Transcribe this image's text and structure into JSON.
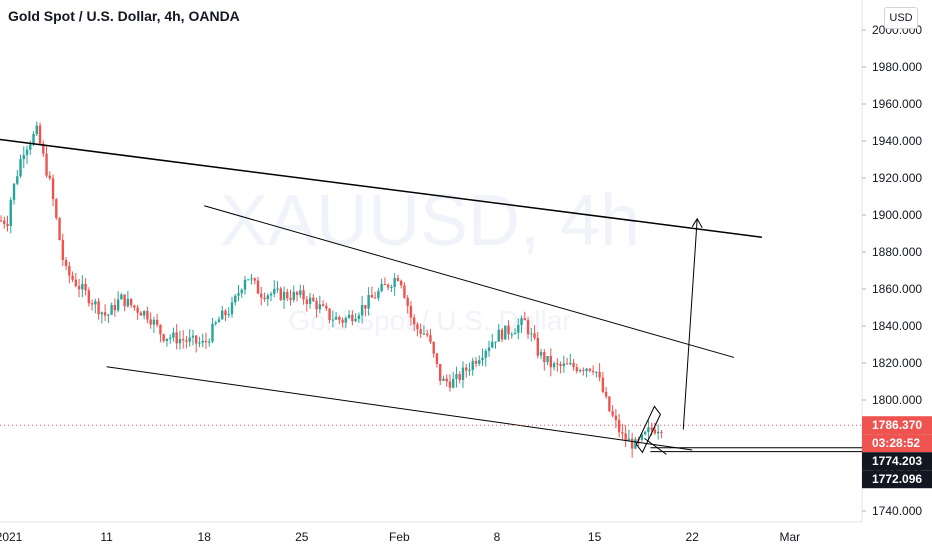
{
  "header": {
    "title": "Gold Spot / U.S. Dollar, 4h, OANDA",
    "currency": "USD"
  },
  "watermark": {
    "symbol": "XAUUSD, 4h",
    "subtitle": "Gold Spot / U.S. Dollar"
  },
  "colors": {
    "up": "#26a69a",
    "down": "#ef5350",
    "axis_text": "#131722",
    "trendline": "#000000",
    "last_price": "#ef5350",
    "dark_label": "#131722"
  },
  "chart_data": {
    "type": "candlestick",
    "title": "Gold Spot / U.S. Dollar, 4h, OANDA",
    "y_axis": {
      "side": "right",
      "ticks": [
        1740,
        1760,
        1780,
        1800,
        1820,
        1840,
        1860,
        1880,
        1900,
        1920,
        1940,
        1960,
        1980,
        2000
      ],
      "tick_labels": [
        "1740.000",
        "1760.000",
        "1780.000",
        "1800.000",
        "1820.000",
        "1840.000",
        "1860.000",
        "1880.000",
        "1900.000",
        "1920.000",
        "1940.000",
        "1960.000",
        "1980.000",
        "2000.000"
      ],
      "ylim": [
        1735,
        2005
      ]
    },
    "x_axis": {
      "tick_labels": [
        "2021",
        "11",
        "18",
        "25",
        "Feb",
        "8",
        "15",
        "22",
        "Mar"
      ],
      "tick_dates": [
        "2021-01-04",
        "2021-01-11",
        "2021-01-18",
        "2021-01-25",
        "2021-02-01",
        "2021-02-08",
        "2021-02-15",
        "2021-02-22",
        "2021-03-01"
      ]
    },
    "key_closes": [
      [
        "2021-01-04",
        1905
      ],
      [
        "2021-01-05",
        1935
      ],
      [
        "2021-01-06",
        1945
      ],
      [
        "2021-01-07",
        1915
      ],
      [
        "2021-01-08",
        1870
      ],
      [
        "2021-01-11",
        1845
      ],
      [
        "2021-01-12",
        1855
      ],
      [
        "2021-01-13",
        1850
      ],
      [
        "2021-01-14",
        1846
      ],
      [
        "2021-01-15",
        1835
      ],
      [
        "2021-01-18",
        1830
      ],
      [
        "2021-01-19",
        1843
      ],
      [
        "2021-01-20",
        1850
      ],
      [
        "2021-01-21",
        1868
      ],
      [
        "2021-01-22",
        1858
      ],
      [
        "2021-01-25",
        1856
      ],
      [
        "2021-01-26",
        1852
      ],
      [
        "2021-01-27",
        1845
      ],
      [
        "2021-01-28",
        1843
      ],
      [
        "2021-01-29",
        1848
      ],
      [
        "2021-02-01",
        1868
      ],
      [
        "2021-02-02",
        1840
      ],
      [
        "2021-02-03",
        1835
      ],
      [
        "2021-02-04",
        1810
      ],
      [
        "2021-02-05",
        1810
      ],
      [
        "2021-02-08",
        1835
      ],
      [
        "2021-02-09",
        1838
      ],
      [
        "2021-02-10",
        1842
      ],
      [
        "2021-02-11",
        1825
      ],
      [
        "2021-02-12",
        1818
      ],
      [
        "2021-02-15",
        1818
      ],
      [
        "2021-02-16",
        1795
      ],
      [
        "2021-02-17",
        1780
      ],
      [
        "2021-02-18",
        1775
      ],
      [
        "2021-02-19",
        1784
      ],
      [
        "2021-02-20",
        1786.37
      ]
    ],
    "trendlines": [
      {
        "name": "upper channel",
        "from": [
          "2020-12-30",
          1945
        ],
        "to": [
          "2021-02-27",
          1888
        ]
      },
      {
        "name": "middle line",
        "from": [
          "2021-01-18",
          1905
        ],
        "to": [
          "2021-02-25",
          1823
        ]
      },
      {
        "name": "lower channel",
        "from": [
          "2021-01-11",
          1818
        ],
        "to": [
          "2021-02-22",
          1773
        ]
      },
      {
        "name": "projection arrow",
        "from": [
          "2021-02-21",
          1784
        ],
        "to": [
          "2021-02-22",
          1898
        ]
      }
    ],
    "price_labels": [
      {
        "text": "1786.370",
        "value": 1786.37,
        "style": "red"
      },
      {
        "text": "03:28:52",
        "value": 1780.0,
        "style": "red"
      },
      {
        "text": "1774.203",
        "value": 1774.203,
        "style": "dark"
      },
      {
        "text": "1772.096",
        "value": 1772.096,
        "style": "dark"
      }
    ],
    "grid": false
  }
}
